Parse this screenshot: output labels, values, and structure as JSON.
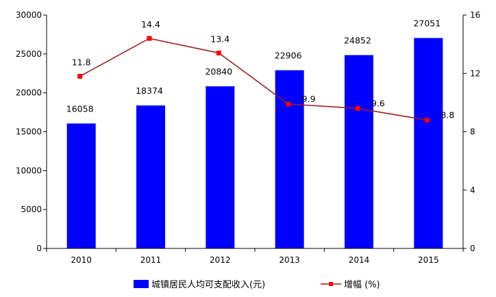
{
  "chart_data": {
    "type": "bar",
    "categories": [
      "2010",
      "2011",
      "2012",
      "2013",
      "2014",
      "2015"
    ],
    "series": [
      {
        "name": "城镇居民人均可支配收入(元)",
        "type": "bar",
        "axis": "left",
        "color": "#0000ff",
        "values": [
          16058,
          18374,
          20840,
          22906,
          24852,
          27051
        ],
        "labels": [
          "16058",
          "18374",
          "20840",
          "22906",
          "24852",
          "27051"
        ]
      },
      {
        "name": "增幅 (%)",
        "type": "line",
        "axis": "right",
        "color": "#9e1e1e",
        "marker_color": "#ff0000",
        "values": [
          11.8,
          14.4,
          13.4,
          9.9,
          9.6,
          8.8
        ],
        "labels": [
          "11.8",
          "14.4",
          "13.4",
          "9.9",
          "9.6",
          "8.8"
        ]
      }
    ],
    "y_left": {
      "range": [
        0,
        30000
      ],
      "ticks": [
        0,
        5000,
        10000,
        15000,
        20000,
        25000,
        30000
      ],
      "tick_labels": [
        "0",
        "5000",
        "10000",
        "15000",
        "20000",
        "25000",
        "30000"
      ]
    },
    "y_right": {
      "range": [
        0,
        16
      ],
      "ticks": [
        0,
        4,
        8,
        12,
        16
      ],
      "tick_labels": [
        "0",
        "4",
        "8",
        "12",
        "16"
      ]
    },
    "grid": false,
    "legend_position": "bottom"
  }
}
